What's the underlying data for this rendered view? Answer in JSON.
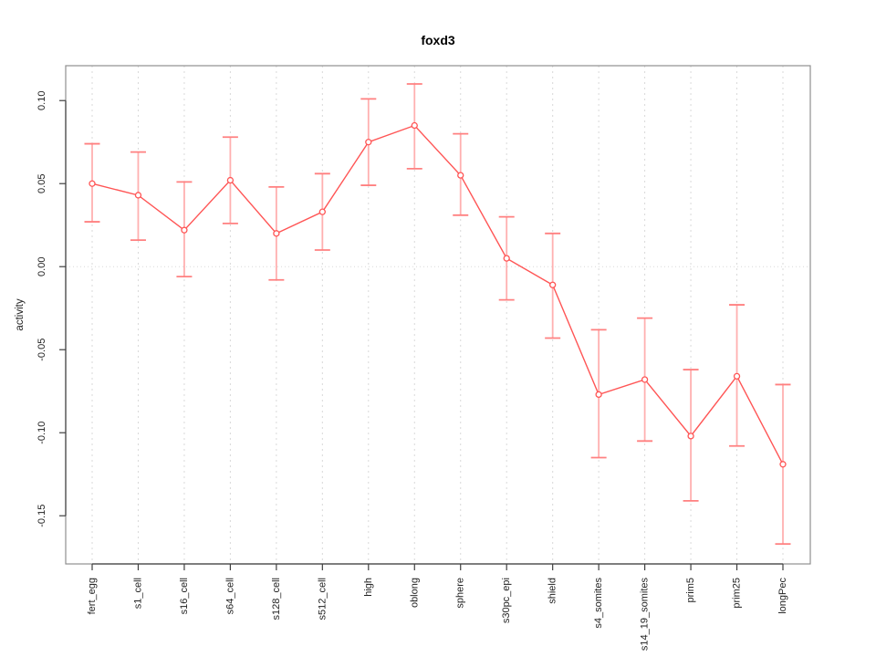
{
  "chart_data": {
    "type": "line",
    "title": "foxd3",
    "xlabel": "",
    "ylabel": "activity",
    "legend_position": "none",
    "grid": "vertical-dashed-plus-dotted-zero-line",
    "categories": [
      "fert_egg",
      "s1_cell",
      "s16_cell",
      "s64_cell",
      "s128_cell",
      "s512_cell",
      "high",
      "oblong",
      "sphere",
      "s30pc_epi",
      "shield",
      "s4_somites",
      "s14_19_somites",
      "prim5",
      "prim25",
      "longPec"
    ],
    "series": [
      {
        "name": "activity",
        "values": [
          0.05,
          0.043,
          0.022,
          0.052,
          0.02,
          0.033,
          0.075,
          0.085,
          0.055,
          0.005,
          -0.011,
          -0.077,
          -0.068,
          -0.102,
          -0.066,
          -0.119
        ],
        "ci_low": [
          0.027,
          0.016,
          -0.006,
          0.026,
          -0.008,
          0.01,
          0.049,
          0.059,
          0.031,
          -0.02,
          -0.043,
          -0.115,
          -0.105,
          -0.141,
          -0.108,
          -0.167
        ],
        "ci_high": [
          0.074,
          0.069,
          0.051,
          0.078,
          0.048,
          0.056,
          0.101,
          0.11,
          0.08,
          0.03,
          0.02,
          -0.038,
          -0.031,
          -0.062,
          -0.023,
          -0.071
        ]
      }
    ],
    "ylim": [
      -0.179,
      0.121
    ],
    "ytick_values": [
      0.1,
      0.05,
      0.0,
      -0.05,
      -0.1,
      -0.15
    ],
    "ytick_labels": [
      "0.10",
      "0.05",
      "0.00",
      "-0.05",
      "-0.10",
      "-0.15"
    ],
    "colors": {
      "series_line": "#ff5555",
      "marker_stroke": "#ff5555",
      "marker_fill": "#ffffff",
      "whisker_bar": "#ffb0b0",
      "whisker_cap": "#ff8080",
      "gridline": "#d9d9d9",
      "zero_line": "#d9d9d9",
      "plot_frame": "#8f8f8f",
      "axis_line": "#3f3f3f",
      "text": "#1f1f1f"
    }
  }
}
